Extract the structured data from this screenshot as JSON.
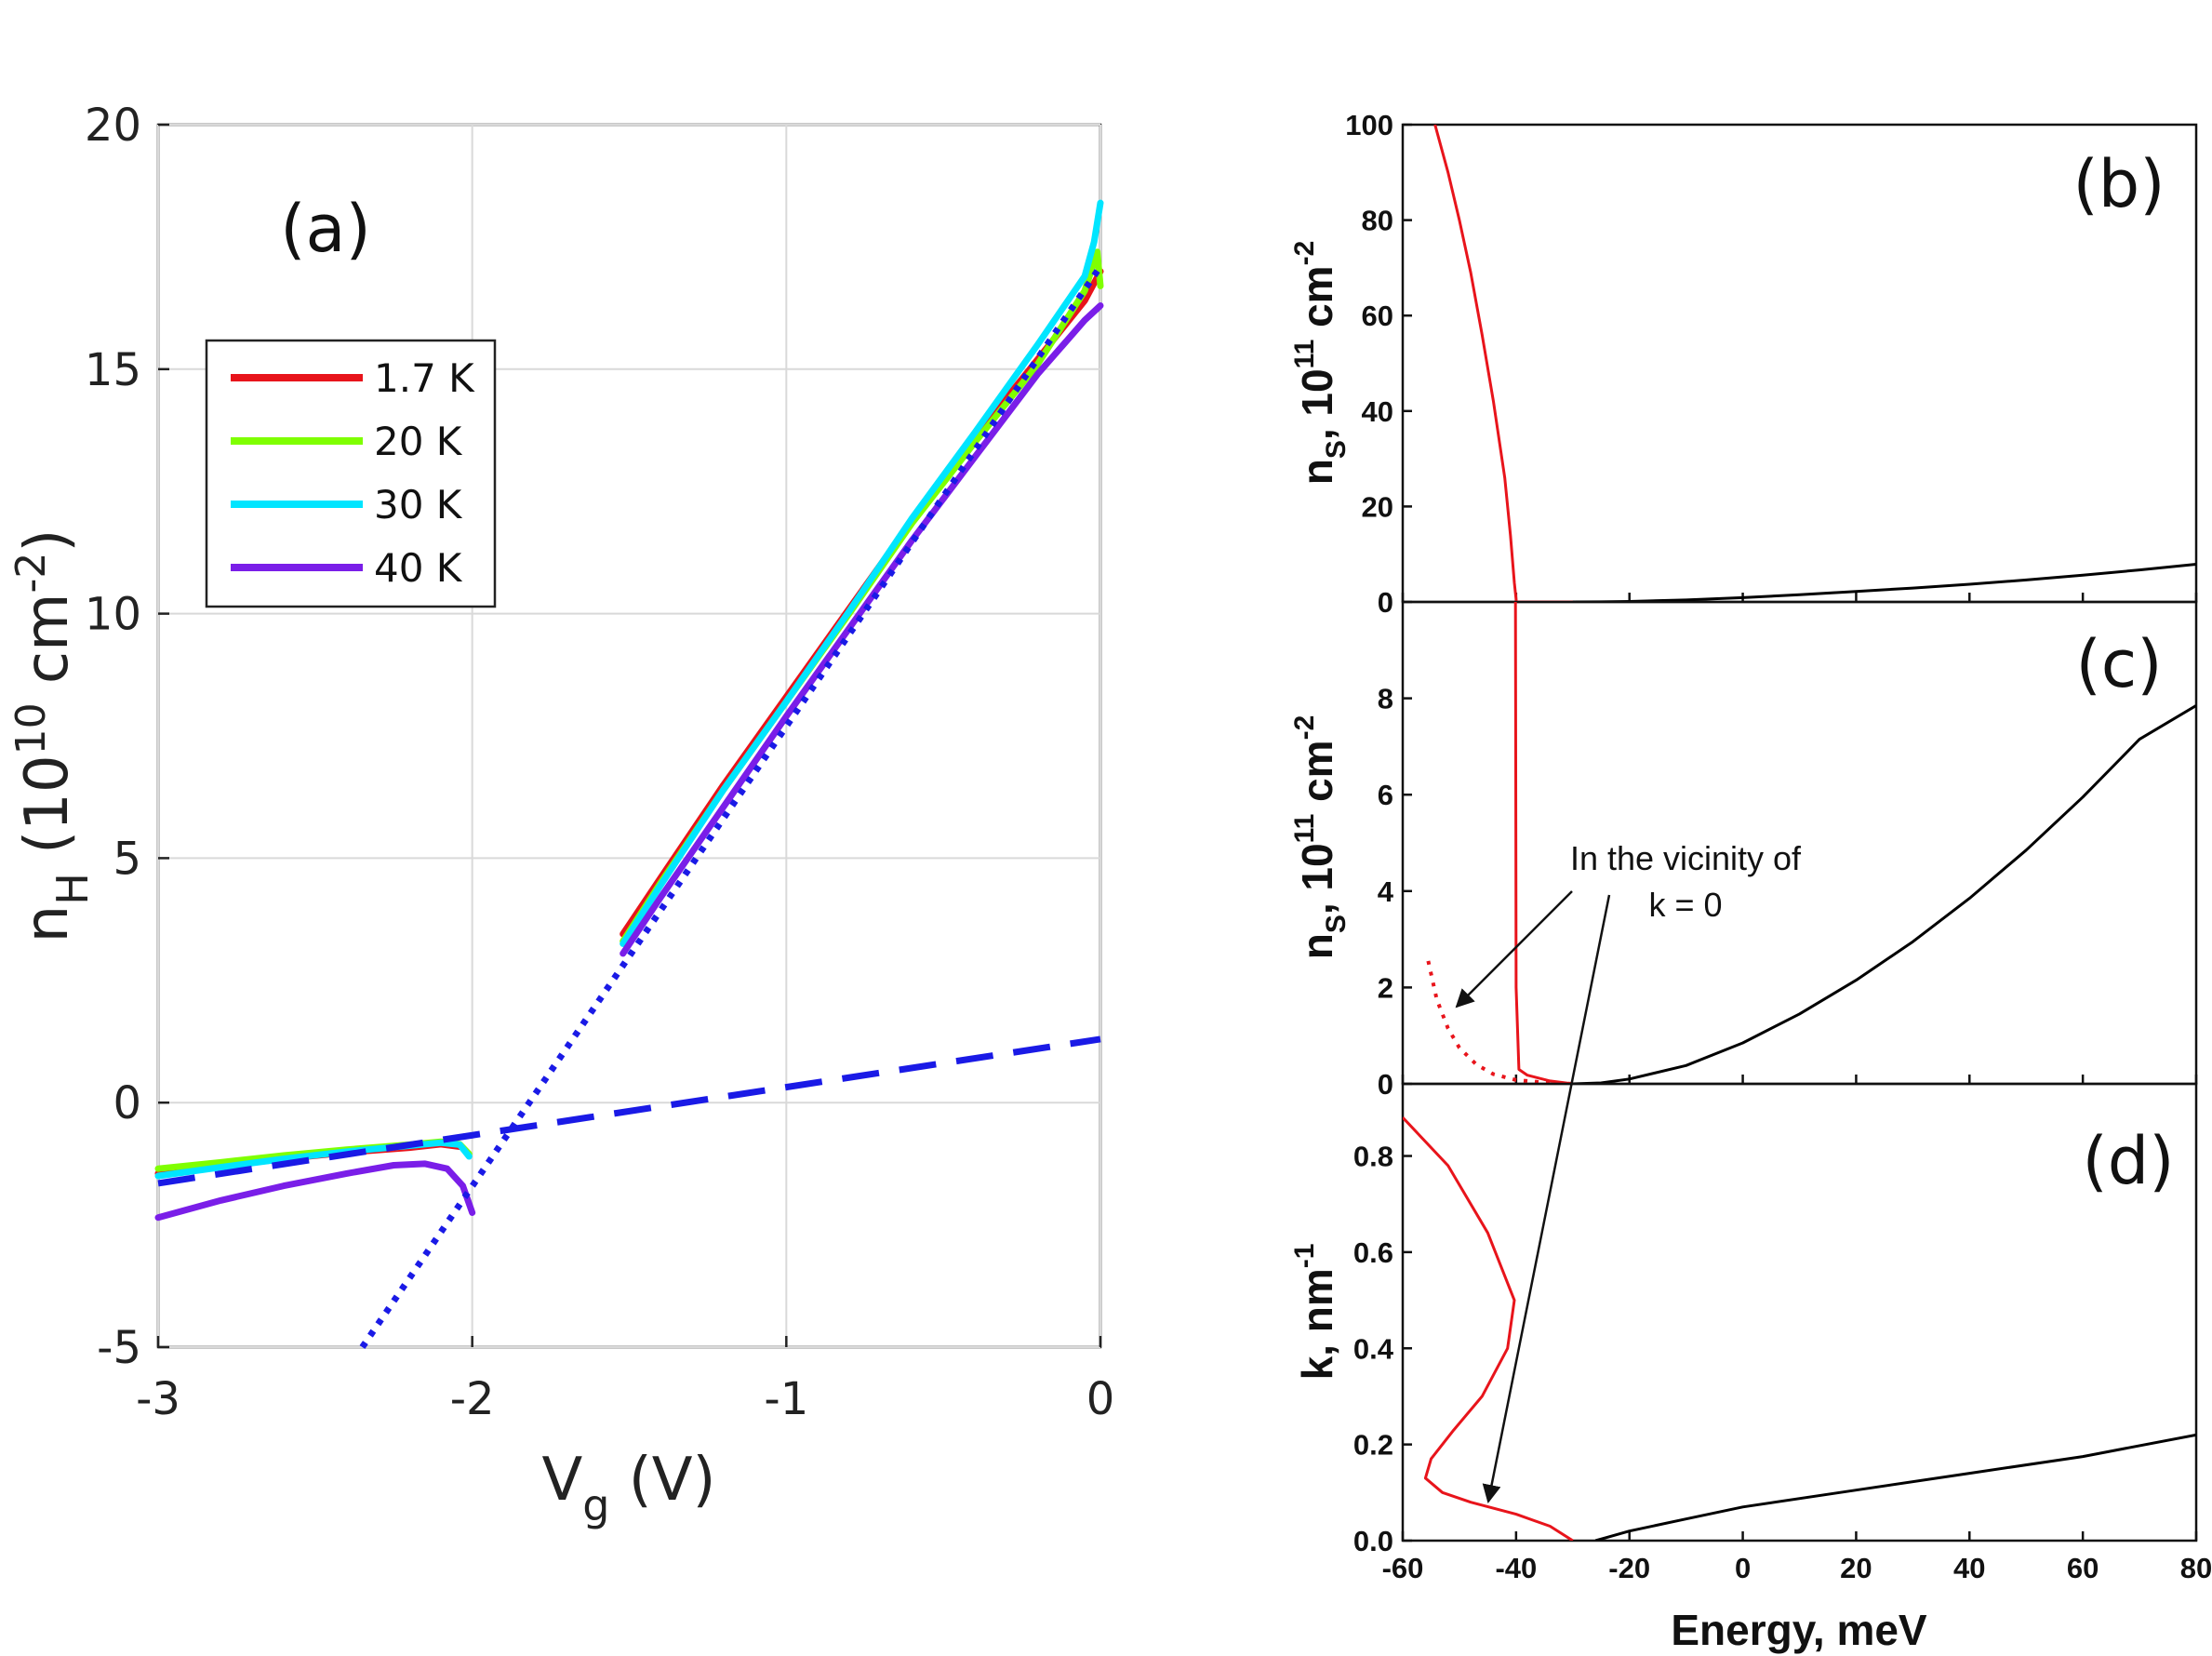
{
  "chart_data": [
    {
      "type": "line",
      "panel": "(a)",
      "xlabel": "V",
      "xlabel_sub": "g",
      "xlabel_unit": " (V)",
      "ylabel": "n",
      "ylabel_sub": "H",
      "ylabel_unit_pre": " (10",
      "ylabel_exp1": "10",
      "ylabel_unit_mid": " cm",
      "ylabel_exp2": "-2",
      "ylabel_unit_post": ")",
      "xlim": [
        -3,
        0
      ],
      "ylim": [
        -5,
        20
      ],
      "xticks": [
        -3,
        -2,
        -1,
        0
      ],
      "xtick_labels": [
        "-3",
        "-2",
        "-1",
        "0"
      ],
      "yticks": [
        -5,
        0,
        5,
        10,
        15,
        20
      ],
      "ytick_labels": [
        "-5",
        "0",
        "5",
        "10",
        "15",
        "20"
      ],
      "grid": true,
      "legend_position": "upper-left",
      "series": [
        {
          "name": "1.7 K",
          "color": "#e8141b",
          "style": "solid",
          "segments": [
            [
              [
                -3,
                -1.45
              ],
              [
                -2.8,
                -1.3
              ],
              [
                -2.6,
                -1.15
              ],
              [
                -2.4,
                -1.02
              ],
              [
                -2.2,
                -0.92
              ],
              [
                -2.1,
                -0.85
              ],
              [
                -2.04,
                -0.9
              ]
            ],
            [
              [
                -1.52,
                3.45
              ],
              [
                -1.4,
                4.6
              ],
              [
                -1.2,
                6.5
              ],
              [
                -1.0,
                8.3
              ],
              [
                -0.8,
                10.1
              ],
              [
                -0.6,
                11.9
              ],
              [
                -0.4,
                13.6
              ],
              [
                -0.2,
                15.2
              ],
              [
                -0.05,
                16.4
              ],
              [
                0,
                17.0
              ]
            ]
          ]
        },
        {
          "name": "20 K",
          "color": "#7fff00",
          "style": "solid",
          "segments": [
            [
              [
                -3,
                -1.35
              ],
              [
                -2.8,
                -1.22
              ],
              [
                -2.6,
                -1.08
              ],
              [
                -2.4,
                -0.96
              ],
              [
                -2.2,
                -0.86
              ],
              [
                -2.1,
                -0.8
              ],
              [
                -2.04,
                -0.85
              ],
              [
                -2.01,
                -1.05
              ]
            ],
            [
              [
                -1.52,
                3.3
              ],
              [
                -1.4,
                4.5
              ],
              [
                -1.2,
                6.4
              ],
              [
                -1.0,
                8.2
              ],
              [
                -0.8,
                10.0
              ],
              [
                -0.6,
                11.85
              ],
              [
                -0.4,
                13.5
              ],
              [
                -0.2,
                15.1
              ],
              [
                -0.05,
                16.6
              ],
              [
                -0.01,
                17.4
              ],
              [
                0,
                16.7
              ]
            ]
          ]
        },
        {
          "name": "30 K",
          "color": "#00e5ff",
          "style": "solid",
          "segments": [
            [
              [
                -3,
                -1.5
              ],
              [
                -2.8,
                -1.32
              ],
              [
                -2.6,
                -1.15
              ],
              [
                -2.4,
                -1.0
              ],
              [
                -2.2,
                -0.88
              ],
              [
                -2.1,
                -0.82
              ],
              [
                -2.04,
                -0.86
              ],
              [
                -2.01,
                -1.1
              ]
            ],
            [
              [
                -1.52,
                3.25
              ],
              [
                -1.4,
                4.45
              ],
              [
                -1.2,
                6.4
              ],
              [
                -1.0,
                8.2
              ],
              [
                -0.8,
                10.05
              ],
              [
                -0.6,
                11.95
              ],
              [
                -0.4,
                13.7
              ],
              [
                -0.2,
                15.5
              ],
              [
                -0.05,
                16.9
              ],
              [
                -0.02,
                17.6
              ],
              [
                0,
                18.4
              ]
            ]
          ]
        },
        {
          "name": "40 K",
          "color": "#7a1ee8",
          "style": "solid",
          "segments": [
            [
              [
                -3,
                -2.35
              ],
              [
                -2.8,
                -2.0
              ],
              [
                -2.6,
                -1.7
              ],
              [
                -2.4,
                -1.45
              ],
              [
                -2.25,
                -1.28
              ],
              [
                -2.15,
                -1.25
              ],
              [
                -2.08,
                -1.35
              ],
              [
                -2.03,
                -1.7
              ],
              [
                -2.0,
                -2.25
              ]
            ],
            [
              [
                -1.52,
                3.05
              ],
              [
                -1.4,
                4.2
              ],
              [
                -1.2,
                6.05
              ],
              [
                -1.0,
                7.9
              ],
              [
                -0.8,
                9.7
              ],
              [
                -0.6,
                11.5
              ],
              [
                -0.4,
                13.2
              ],
              [
                -0.2,
                14.9
              ],
              [
                -0.05,
                16.0
              ],
              [
                0,
                16.3
              ]
            ]
          ]
        },
        {
          "name": "",
          "color": "#1a1ae6",
          "style": "dashed",
          "segments": [
            [
              [
                -3,
                -1.65
              ],
              [
                0,
                1.3
              ]
            ]
          ]
        },
        {
          "name": "",
          "color": "#1a1ae6",
          "style": "dotted",
          "segments": [
            [
              [
                -2.35,
                -5.0
              ],
              [
                0,
                17.1
              ]
            ]
          ]
        }
      ]
    },
    {
      "type": "line",
      "panel": "(b)",
      "ylabel_pre": "n",
      "ylabel_sub": "S",
      "ylabel_mid": ", 10",
      "ylabel_exp1": "11",
      "ylabel_unit": " cm",
      "ylabel_exp2": "-2",
      "xlim": [
        -60,
        80
      ],
      "ylim": [
        0,
        100
      ],
      "yticks": [
        0,
        20,
        40,
        60,
        80,
        100
      ],
      "ytick_labels": [
        "0",
        "20",
        "40",
        "60",
        "80",
        "100"
      ],
      "series": [
        {
          "name": "",
          "color": "#e8141b",
          "points": [
            [
              -54.3,
              100
            ],
            [
              -52,
              90
            ],
            [
              -50,
              80
            ],
            [
              -48,
              69
            ],
            [
              -46,
              56
            ],
            [
              -44,
              42
            ],
            [
              -42,
              26
            ],
            [
              -41,
              14
            ],
            [
              -40.3,
              4
            ],
            [
              -40,
              0.5
            ],
            [
              -40,
              0
            ],
            [
              -26,
              0
            ]
          ]
        },
        {
          "name": "",
          "color": "#000000",
          "points": [
            [
              -30,
              0
            ],
            [
              -25,
              0.02
            ],
            [
              -20,
              0.1
            ],
            [
              -10,
              0.4
            ],
            [
              0,
              0.9
            ],
            [
              10,
              1.5
            ],
            [
              20,
              2.2
            ],
            [
              30,
              2.9
            ],
            [
              40,
              3.7
            ],
            [
              50,
              4.6
            ],
            [
              60,
              5.6
            ],
            [
              70,
              6.7
            ],
            [
              80,
              7.9
            ]
          ]
        }
      ]
    },
    {
      "type": "line",
      "panel": "(c)",
      "ylabel_pre": "n",
      "ylabel_sub": "S",
      "ylabel_mid": ", 10",
      "ylabel_exp1": "11",
      "ylabel_unit": " cm",
      "ylabel_exp2": "-2",
      "xlim": [
        -60,
        80
      ],
      "ylim": [
        0,
        10
      ],
      "yticks": [
        0,
        2,
        4,
        6,
        8
      ],
      "ytick_labels": [
        "0",
        "2",
        "4",
        "6",
        "8"
      ],
      "annotation": [
        "In the vicinity of",
        "k = 0"
      ],
      "series": [
        {
          "name": "",
          "color": "#e8141b",
          "style": "solid",
          "points": [
            [
              -40.1,
              10
            ],
            [
              -40,
              2
            ],
            [
              -39.5,
              0.3
            ],
            [
              -38,
              0.18
            ],
            [
              -34,
              0.06
            ],
            [
              -30,
              0.0
            ]
          ]
        },
        {
          "name": "",
          "color": "#e8141b",
          "style": "dotted",
          "points": [
            [
              -55.5,
              2.55
            ],
            [
              -54,
              1.75
            ],
            [
              -52,
              1.15
            ],
            [
              -50,
              0.75
            ],
            [
              -47,
              0.4
            ],
            [
              -44,
              0.2
            ],
            [
              -40,
              0.08
            ],
            [
              -34,
              0.02
            ],
            [
              -30,
              0
            ]
          ]
        },
        {
          "name": "",
          "color": "#000000",
          "style": "solid",
          "points": [
            [
              -30,
              0
            ],
            [
              -25,
              0.02
            ],
            [
              -20,
              0.1
            ],
            [
              -10,
              0.38
            ],
            [
              0,
              0.85
            ],
            [
              10,
              1.45
            ],
            [
              20,
              2.15
            ],
            [
              30,
              2.95
            ],
            [
              40,
              3.85
            ],
            [
              50,
              4.85
            ],
            [
              60,
              5.95
            ],
            [
              70,
              7.15
            ],
            [
              80,
              7.85
            ]
          ]
        }
      ]
    },
    {
      "type": "line",
      "panel": "(d)",
      "xlabel": "Energy, meV",
      "ylabel_pre": "k, nm",
      "ylabel_exp1": "-1",
      "xlim": [
        -60,
        80
      ],
      "ylim": [
        0,
        0.95
      ],
      "xticks": [
        -60,
        -40,
        -20,
        0,
        20,
        40,
        60,
        80
      ],
      "xtick_labels": [
        "-60",
        "-40",
        "-20",
        "0",
        "20",
        "40",
        "60",
        "80"
      ],
      "yticks": [
        0,
        0.2,
        0.4,
        0.6,
        0.8
      ],
      "ytick_labels": [
        "0.0",
        "0.2",
        "0.4",
        "0.6",
        "0.8"
      ],
      "series": [
        {
          "name": "",
          "color": "#e8141b",
          "points": [
            [
              -60,
              0.88
            ],
            [
              -52,
              0.78
            ],
            [
              -45,
              0.64
            ],
            [
              -40.3,
              0.5
            ],
            [
              -41.5,
              0.4
            ],
            [
              -46,
              0.3
            ],
            [
              -51,
              0.23
            ],
            [
              -55,
              0.17
            ],
            [
              -56,
              0.13
            ],
            [
              -53,
              0.1
            ],
            [
              -48,
              0.08
            ],
            [
              -40,
              0.055
            ],
            [
              -34,
              0.03
            ],
            [
              -30,
              0.0
            ]
          ]
        },
        {
          "name": "",
          "color": "#000000",
          "points": [
            [
              -26,
              0
            ],
            [
              -20,
              0.02
            ],
            [
              -10,
              0.045
            ],
            [
              0,
              0.07
            ],
            [
              20,
              0.105
            ],
            [
              40,
              0.14
            ],
            [
              60,
              0.175
            ],
            [
              80,
              0.22
            ]
          ]
        }
      ]
    }
  ]
}
